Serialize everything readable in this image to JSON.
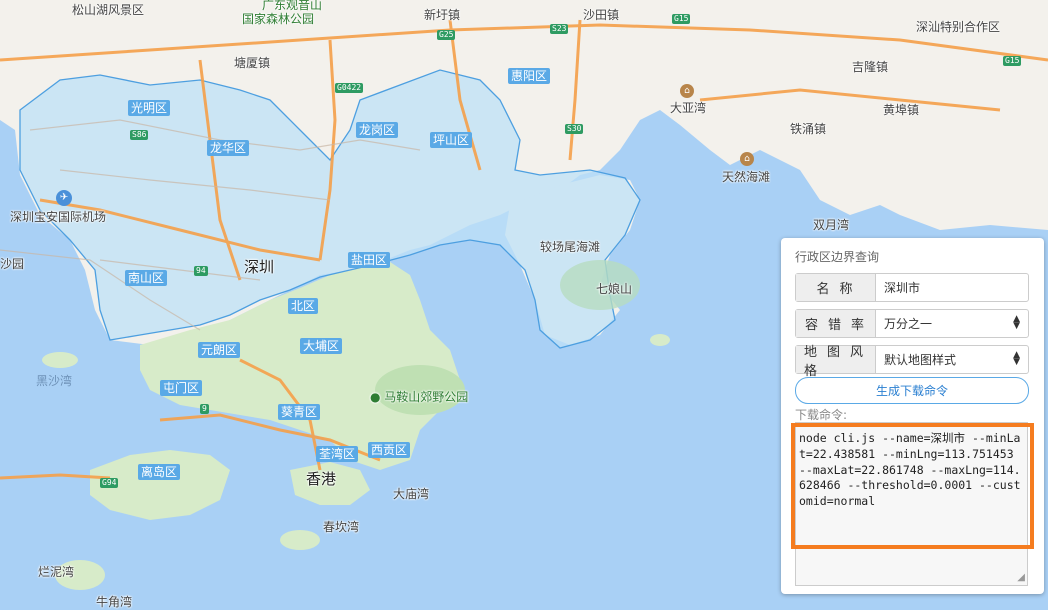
{
  "map": {
    "places": [
      {
        "name": "深圳",
        "label": "深圳"
      },
      {
        "name": "香港",
        "label": "香港"
      },
      {
        "name": "松山湖风景区",
        "label": "松山湖风景区"
      },
      {
        "name": "广东观音山国家森林公园",
        "label": "广东观音山"
      },
      {
        "name": "国家森林公园",
        "label": "国家森林公园"
      },
      {
        "name": "新圩镇",
        "label": "新圩镇"
      },
      {
        "name": "沙田镇",
        "label": "沙田镇"
      },
      {
        "name": "深汕特别合作区",
        "label": "深汕特别合作区"
      },
      {
        "name": "塘厦镇",
        "label": "塘厦镇"
      },
      {
        "name": "吉隆镇",
        "label": "吉隆镇"
      },
      {
        "name": "黄埠镇",
        "label": "黄埠镇"
      },
      {
        "name": "铁涌镇",
        "label": "铁涌镇"
      },
      {
        "name": "大亚湾",
        "label": "大亚湾"
      },
      {
        "name": "天然海滩",
        "label": "天然海滩"
      },
      {
        "name": "双月湾",
        "label": "双月湾"
      },
      {
        "name": "深圳宝安国际机场",
        "label": "深圳宝安国际机场"
      },
      {
        "name": "较场尾海滩",
        "label": "较场尾海滩"
      },
      {
        "name": "七娘山",
        "label": "七娘山"
      },
      {
        "name": "马鞍山郊野公园",
        "label": "马鞍山郊野公园"
      },
      {
        "name": "大庙湾",
        "label": "大庙湾"
      },
      {
        "name": "春坎湾",
        "label": "春坎湾"
      },
      {
        "name": "烂泥湾",
        "label": "烂泥湾"
      },
      {
        "name": "牛角湾",
        "label": "牛角湾"
      },
      {
        "name": "黑沙湾",
        "label": "黑沙湾"
      },
      {
        "name": "沙园",
        "label": "沙园"
      }
    ],
    "districts": [
      "光明区",
      "龙华区",
      "龙岗区",
      "坪山区",
      "惠阳区",
      "南山区",
      "盐田区",
      "北区",
      "元朗区",
      "大埔区",
      "屯门区",
      "葵青区",
      "荃湾区",
      "离岛区",
      "西贡区"
    ],
    "shields": [
      "G25",
      "S23",
      "G15",
      "G0422",
      "S86",
      "S30",
      "G94",
      "G15",
      "9",
      "94"
    ]
  },
  "panel": {
    "title": "行政区边界查询",
    "name_label": "名称",
    "name_value": "深圳市",
    "threshold_label": "容错率",
    "threshold_value": "万分之一",
    "style_label": "地图风格",
    "style_value": "默认地图样式",
    "generate_label": "生成下载命令",
    "download_label": "下载命令:",
    "command": "node cli.js --name=深圳市 --minLat=22.438581 --minLng=113.751453 --maxLat=22.861748 --maxLng=114.628466 --threshold=0.0001 --customid=normal"
  },
  "colors": {
    "water": "#a9d0f5",
    "land": "#f3f1ec",
    "green": "#cde6c2",
    "highlight_fill": "#bde0f7",
    "district_tag": "#5aa9e6",
    "orange_box": "#f57c1f",
    "road_major": "#f5a04a"
  }
}
